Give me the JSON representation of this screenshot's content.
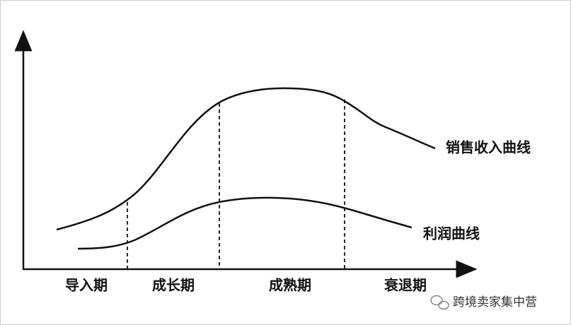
{
  "curves": [
    {
      "label": "销售收入曲线"
    },
    {
      "label": "利润曲线"
    }
  ],
  "stages": [
    "导入期",
    "成长期",
    "成熟期",
    "衰退期"
  ],
  "watermark": "跨境卖家集中营"
}
